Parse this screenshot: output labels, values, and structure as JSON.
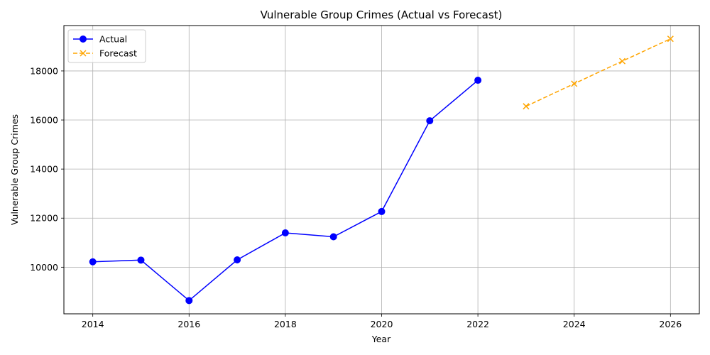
{
  "chart_data": {
    "type": "line",
    "title": "Vulnerable Group Crimes (Actual vs Forecast)",
    "xlabel": "Year",
    "ylabel": "Vulnerable Group Crimes",
    "xlim": [
      2013.4,
      2026.6
    ],
    "ylim": [
      8100,
      19850
    ],
    "x_ticks": [
      2014,
      2016,
      2018,
      2020,
      2022,
      2024,
      2026
    ],
    "y_ticks": [
      10000,
      12000,
      14000,
      16000,
      18000
    ],
    "grid": true,
    "legend_position": "top-left",
    "series": [
      {
        "name": "Actual",
        "color": "#0000ff",
        "line_style": "solid",
        "marker": "circle",
        "x": [
          2014,
          2015,
          2016,
          2017,
          2018,
          2019,
          2020,
          2021,
          2022
        ],
        "y": [
          10220,
          10290,
          8640,
          10300,
          11400,
          11240,
          12270,
          15970,
          17620
        ]
      },
      {
        "name": "Forecast",
        "color": "#ffa500",
        "line_style": "dashed",
        "marker": "x",
        "x": [
          2023,
          2024,
          2025,
          2026
        ],
        "y": [
          16560,
          17480,
          18400,
          19310
        ]
      }
    ]
  }
}
